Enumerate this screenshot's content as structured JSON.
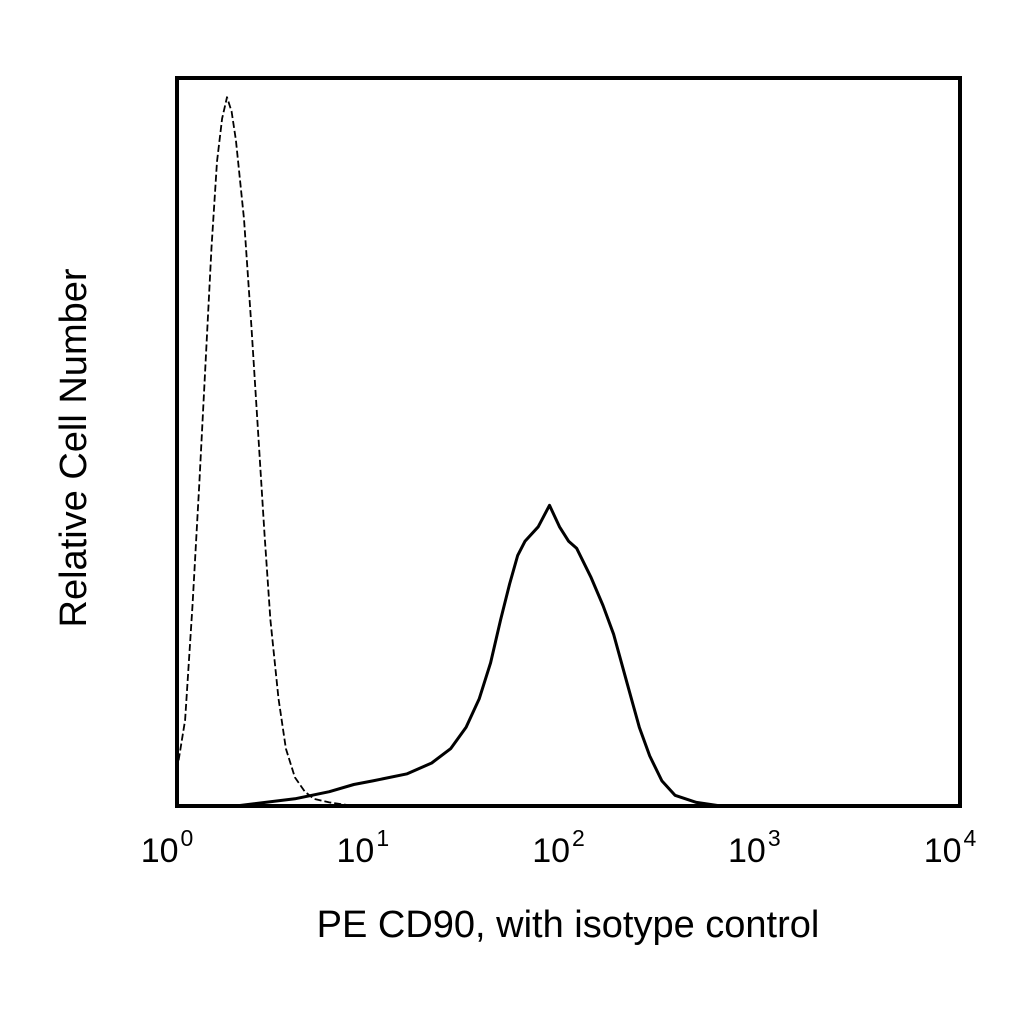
{
  "chart_data": {
    "type": "line",
    "x_scale": "log",
    "xlim": [
      1,
      10000
    ],
    "ylim": [
      0,
      100
    ],
    "y_ticks_shown": false,
    "grid": false,
    "legend": "none",
    "xlabel": "PE CD90, with isotype control",
    "ylabel": "Relative Cell Number",
    "x_ticks": [
      {
        "value": 1,
        "base": "10",
        "exp": "0"
      },
      {
        "value": 10,
        "base": "10",
        "exp": "1"
      },
      {
        "value": 100,
        "base": "10",
        "exp": "2"
      },
      {
        "value": 1000,
        "base": "10",
        "exp": "3"
      },
      {
        "value": 10000,
        "base": "10",
        "exp": "4"
      }
    ],
    "series": [
      {
        "style": "dashed",
        "color": "#000000",
        "points": [
          [
            1.0,
            5
          ],
          [
            1.1,
            12
          ],
          [
            1.2,
            28
          ],
          [
            1.3,
            45
          ],
          [
            1.4,
            62
          ],
          [
            1.5,
            78
          ],
          [
            1.6,
            90
          ],
          [
            1.7,
            96
          ],
          [
            1.8,
            99
          ],
          [
            1.9,
            97
          ],
          [
            2.0,
            93
          ],
          [
            2.2,
            82
          ],
          [
            2.4,
            67
          ],
          [
            2.6,
            52
          ],
          [
            2.8,
            38
          ],
          [
            3.0,
            26
          ],
          [
            3.3,
            15
          ],
          [
            3.6,
            8
          ],
          [
            4.0,
            4
          ],
          [
            4.5,
            2
          ],
          [
            5.0,
            1
          ],
          [
            6.0,
            0.5
          ],
          [
            8.0,
            0
          ]
        ]
      },
      {
        "style": "solid",
        "color": "#000000",
        "points": [
          [
            2.0,
            0
          ],
          [
            4.0,
            1
          ],
          [
            6.0,
            2
          ],
          [
            8.0,
            3
          ],
          [
            10,
            3.5
          ],
          [
            15,
            4.5
          ],
          [
            20,
            6
          ],
          [
            25,
            8
          ],
          [
            30,
            11
          ],
          [
            35,
            15
          ],
          [
            40,
            20
          ],
          [
            45,
            26
          ],
          [
            50,
            31
          ],
          [
            55,
            35
          ],
          [
            60,
            37
          ],
          [
            70,
            39
          ],
          [
            80,
            42
          ],
          [
            90,
            39
          ],
          [
            100,
            37
          ],
          [
            110,
            36
          ],
          [
            130,
            32
          ],
          [
            150,
            28
          ],
          [
            170,
            24
          ],
          [
            200,
            17
          ],
          [
            230,
            11
          ],
          [
            260,
            7
          ],
          [
            300,
            3.5
          ],
          [
            350,
            1.5
          ],
          [
            450,
            0.5
          ],
          [
            600,
            0
          ],
          [
            10000,
            0
          ]
        ]
      }
    ]
  }
}
